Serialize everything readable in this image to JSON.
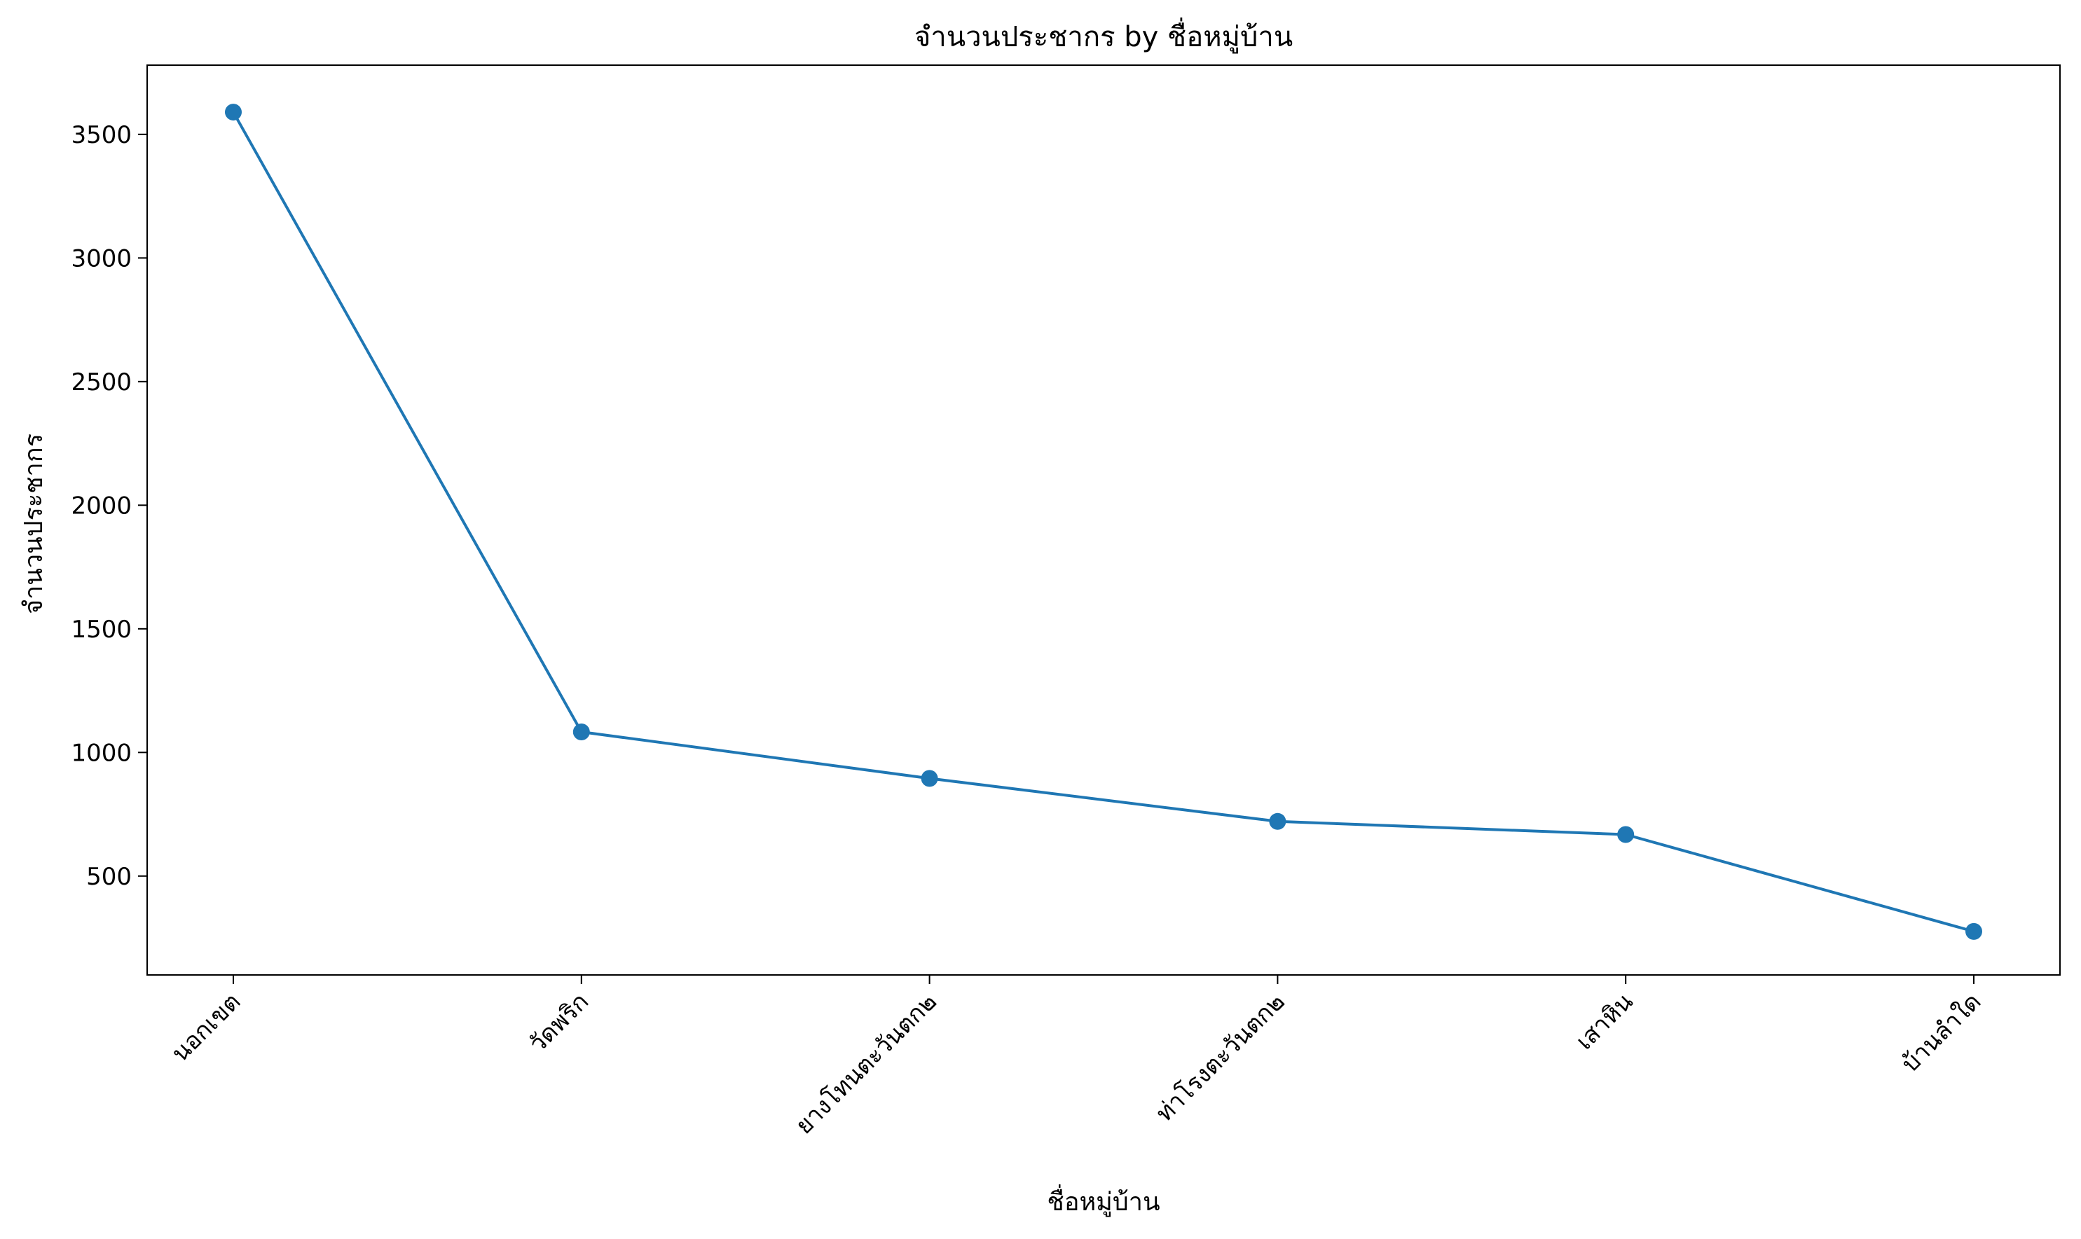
{
  "chart_data": {
    "type": "line",
    "title": "จำนวนประชากร by ชื่อหมู่บ้าน",
    "xlabel": "ชื่อหมู่บ้าน",
    "ylabel": "จำนวนประชากร",
    "categories": [
      "นอกเขต",
      "วัดพริก",
      "ยางโทนตะวันตก๒",
      "ท่าโรงตะวันตก๒",
      "เสาหิน",
      "บ้านลำใด"
    ],
    "series": [
      {
        "values": [
          3590,
          1083,
          895,
          721,
          668,
          276
        ]
      }
    ],
    "ylim": [
      100,
      3780
    ],
    "yticks": [
      500,
      1000,
      1500,
      2000,
      2500,
      3000,
      3500
    ],
    "grid": false,
    "legend": "none",
    "colors": {
      "line": "#1f77b4",
      "marker": "#1f77b4",
      "axes": "#000000"
    }
  }
}
